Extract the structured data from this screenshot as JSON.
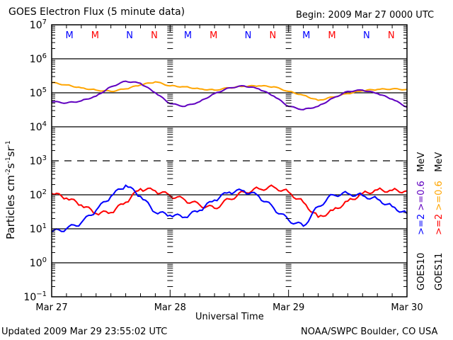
{
  "header": {
    "title": "GOES Electron Flux (5 minute data)",
    "begin": "Begin: 2009 Mar 27 0000 UTC"
  },
  "footer": {
    "updated": "Updated 2009 Mar 29 23:55:02 UTC",
    "credit": "NOAA/SWPC Boulder, CO USA"
  },
  "chart_data": {
    "type": "line",
    "title": "GOES Electron Flux (5 minute data)",
    "xlabel": "Universal Time",
    "ylabel": "Particles cm-2s-1sr-1",
    "yscale": "log",
    "ylim": [
      0.1,
      10000000
    ],
    "ytick_labels": [
      "10-1",
      "100",
      "101",
      "102",
      "103",
      "104",
      "105",
      "106",
      "107"
    ],
    "ytick_values": [
      0.1,
      1,
      10,
      100,
      1000,
      10000,
      100000,
      1000000,
      10000000
    ],
    "xlim_hours": [
      0,
      72
    ],
    "xtick_labels": [
      "Mar 27",
      "Mar 28",
      "Mar 29",
      "Mar 30"
    ],
    "xtick_hours": [
      0,
      24,
      48,
      72
    ],
    "gridlines_solid": [
      1,
      10,
      100,
      10000,
      100000,
      1000000
    ],
    "gridlines_dashed": [
      1000
    ],
    "grid": true,
    "legend_placement": "right",
    "markers": [
      {
        "label": "M",
        "hour": 3.6,
        "color": "#0000ff"
      },
      {
        "label": "M",
        "hour": 8.8,
        "color": "#ff0000"
      },
      {
        "label": "N",
        "hour": 15.8,
        "color": "#0000ff"
      },
      {
        "label": "N",
        "hour": 20.8,
        "color": "#ff0000"
      },
      {
        "label": "M",
        "hour": 27.6,
        "color": "#0000ff"
      },
      {
        "label": "M",
        "hour": 32.8,
        "color": "#ff0000"
      },
      {
        "label": "N",
        "hour": 39.8,
        "color": "#0000ff"
      },
      {
        "label": "N",
        "hour": 44.8,
        "color": "#ff0000"
      },
      {
        "label": "M",
        "hour": 51.6,
        "color": "#0000ff"
      },
      {
        "label": "M",
        "hour": 56.8,
        "color": "#ff0000"
      },
      {
        "label": "N",
        "hour": 63.8,
        "color": "#0000ff"
      },
      {
        "label": "N",
        "hour": 68.8,
        "color": "#ff0000"
      }
    ],
    "x_hours": [
      0,
      3,
      6,
      9,
      12,
      15,
      18,
      21,
      24,
      27,
      30,
      33,
      36,
      39,
      42,
      45,
      48,
      51,
      54,
      57,
      60,
      63,
      66,
      69,
      72
    ],
    "series": [
      {
        "name": "GOES11 >=0.6 MeV",
        "color": "#ffa500",
        "values": [
          200000,
          170000,
          140000,
          120000,
          110000,
          130000,
          170000,
          210000,
          160000,
          150000,
          130000,
          120000,
          140000,
          155000,
          160000,
          150000,
          110000,
          85000,
          60000,
          75000,
          95000,
          115000,
          125000,
          130000,
          125000
        ]
      },
      {
        "name": "GOES10 >=0.6 MeV",
        "color": "#6000c0",
        "values": [
          55000,
          50000,
          58000,
          80000,
          150000,
          220000,
          190000,
          100000,
          48000,
          40000,
          55000,
          95000,
          140000,
          160000,
          130000,
          80000,
          40000,
          32000,
          40000,
          70000,
          110000,
          120000,
          95000,
          65000,
          38000
        ]
      },
      {
        "name": "GOES11 >=2 MeV",
        "color": "#ff0000",
        "values": [
          110,
          80,
          50,
          28,
          30,
          60,
          150,
          130,
          95,
          70,
          50,
          40,
          75,
          120,
          150,
          170,
          120,
          60,
          22,
          35,
          65,
          110,
          140,
          135,
          130
        ]
      },
      {
        "name": "GOES10 >=2 MeV",
        "color": "#0000ff",
        "values": [
          8,
          10,
          15,
          35,
          90,
          190,
          90,
          30,
          25,
          22,
          35,
          70,
          120,
          130,
          90,
          40,
          18,
          12,
          45,
          100,
          110,
          95,
          75,
          45,
          28
        ]
      }
    ],
    "legend": [
      {
        "prefix": "GOES10",
        "label": ">=2",
        "color": "#0000ff",
        "label2": ">=0.6",
        "color2": "#6000c0",
        "unit": "MeV"
      },
      {
        "prefix": "GOES11",
        "label": ">=2",
        "color": "#ff0000",
        "label2": ">=0.6",
        "color2": "#ffa500",
        "unit": "MeV"
      }
    ]
  }
}
